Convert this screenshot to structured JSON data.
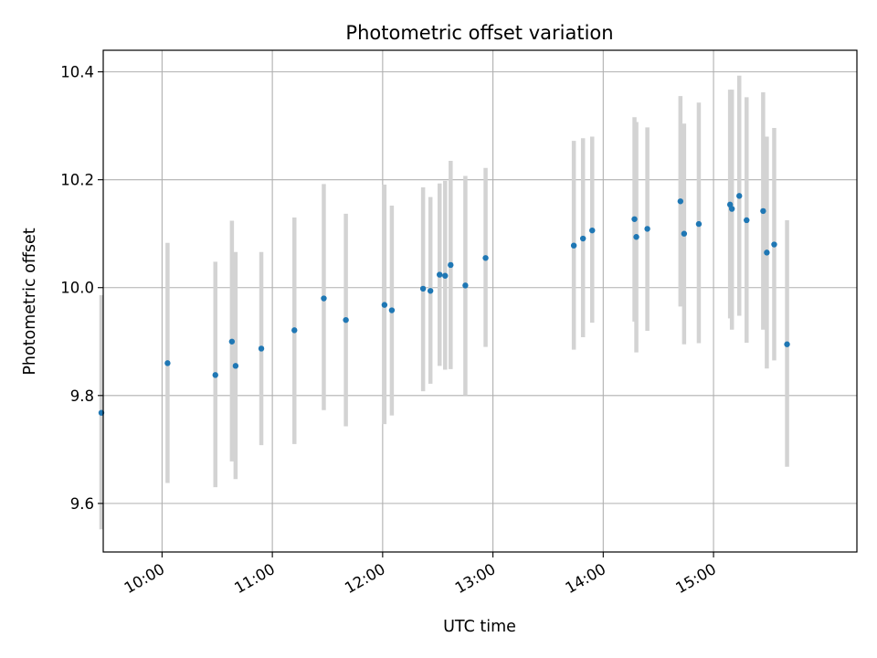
{
  "chart_data": {
    "type": "scatter",
    "title": "Photometric offset variation",
    "xlabel": "UTC time",
    "ylabel": "Photometric offset",
    "xlim": [
      "09:28",
      "16:18"
    ],
    "ylim": [
      9.51,
      10.44
    ],
    "grid": true,
    "x_ticks": [
      "10:00",
      "11:00",
      "12:00",
      "13:00",
      "14:00",
      "15:00"
    ],
    "y_ticks": [
      "9.6",
      "9.8",
      "10.0",
      "10.2",
      "10.4"
    ],
    "colors": {
      "point": "#1f77b4",
      "errorbar": "#d3d3d3",
      "grid": "#b0b0b0"
    },
    "series": [
      {
        "points": [
          {
            "x": "09:27",
            "y": 9.768,
            "ylow": 9.552,
            "yhigh": 9.986
          },
          {
            "x": "10:03",
            "y": 9.86,
            "ylow": 9.638,
            "yhigh": 10.083
          },
          {
            "x": "10:29",
            "y": 9.838,
            "ylow": 9.63,
            "yhigh": 10.048
          },
          {
            "x": "10:38",
            "y": 9.9,
            "ylow": 9.678,
            "yhigh": 10.124
          },
          {
            "x": "10:40",
            "y": 9.855,
            "ylow": 9.645,
            "yhigh": 10.066
          },
          {
            "x": "10:54",
            "y": 9.887,
            "ylow": 9.708,
            "yhigh": 10.066
          },
          {
            "x": "11:12",
            "y": 9.921,
            "ylow": 9.71,
            "yhigh": 10.13
          },
          {
            "x": "11:28",
            "y": 9.98,
            "ylow": 9.773,
            "yhigh": 10.192
          },
          {
            "x": "11:40",
            "y": 9.94,
            "ylow": 9.743,
            "yhigh": 10.137
          },
          {
            "x": "12:01",
            "y": 9.968,
            "ylow": 9.747,
            "yhigh": 10.191
          },
          {
            "x": "12:05",
            "y": 9.958,
            "ylow": 9.763,
            "yhigh": 10.152
          },
          {
            "x": "12:22",
            "y": 9.998,
            "ylow": 9.808,
            "yhigh": 10.186
          },
          {
            "x": "12:26",
            "y": 9.994,
            "ylow": 9.822,
            "yhigh": 10.168
          },
          {
            "x": "12:31",
            "y": 10.024,
            "ylow": 9.855,
            "yhigh": 10.193
          },
          {
            "x": "12:34",
            "y": 10.022,
            "ylow": 9.848,
            "yhigh": 10.198
          },
          {
            "x": "12:37",
            "y": 10.042,
            "ylow": 9.849,
            "yhigh": 10.235
          },
          {
            "x": "12:45",
            "y": 10.004,
            "ylow": 9.8,
            "yhigh": 10.207
          },
          {
            "x": "12:56",
            "y": 10.055,
            "ylow": 9.89,
            "yhigh": 10.222
          },
          {
            "x": "13:44",
            "y": 10.078,
            "ylow": 9.885,
            "yhigh": 10.272
          },
          {
            "x": "13:49",
            "y": 10.091,
            "ylow": 9.908,
            "yhigh": 10.277
          },
          {
            "x": "13:54",
            "y": 10.106,
            "ylow": 9.935,
            "yhigh": 10.28
          },
          {
            "x": "14:17",
            "y": 10.127,
            "ylow": 9.937,
            "yhigh": 10.316
          },
          {
            "x": "14:18",
            "y": 10.094,
            "ylow": 9.88,
            "yhigh": 10.307
          },
          {
            "x": "14:24",
            "y": 10.109,
            "ylow": 9.92,
            "yhigh": 10.297
          },
          {
            "x": "14:42",
            "y": 10.16,
            "ylow": 9.965,
            "yhigh": 10.355
          },
          {
            "x": "14:44",
            "y": 10.1,
            "ylow": 9.895,
            "yhigh": 10.304
          },
          {
            "x": "14:52",
            "y": 10.118,
            "ylow": 9.897,
            "yhigh": 10.343
          },
          {
            "x": "15:09",
            "y": 10.154,
            "ylow": 9.943,
            "yhigh": 10.367
          },
          {
            "x": "15:10",
            "y": 10.146,
            "ylow": 9.922,
            "yhigh": 10.367
          },
          {
            "x": "15:14",
            "y": 10.17,
            "ylow": 9.948,
            "yhigh": 10.393
          },
          {
            "x": "15:18",
            "y": 10.125,
            "ylow": 9.898,
            "yhigh": 10.353
          },
          {
            "x": "15:27",
            "y": 10.142,
            "ylow": 9.922,
            "yhigh": 10.362
          },
          {
            "x": "15:29",
            "y": 10.065,
            "ylow": 9.85,
            "yhigh": 10.28
          },
          {
            "x": "15:33",
            "y": 10.08,
            "ylow": 9.865,
            "yhigh": 10.296
          },
          {
            "x": "15:40",
            "y": 9.895,
            "ylow": 9.668,
            "yhigh": 10.125
          }
        ]
      }
    ]
  }
}
